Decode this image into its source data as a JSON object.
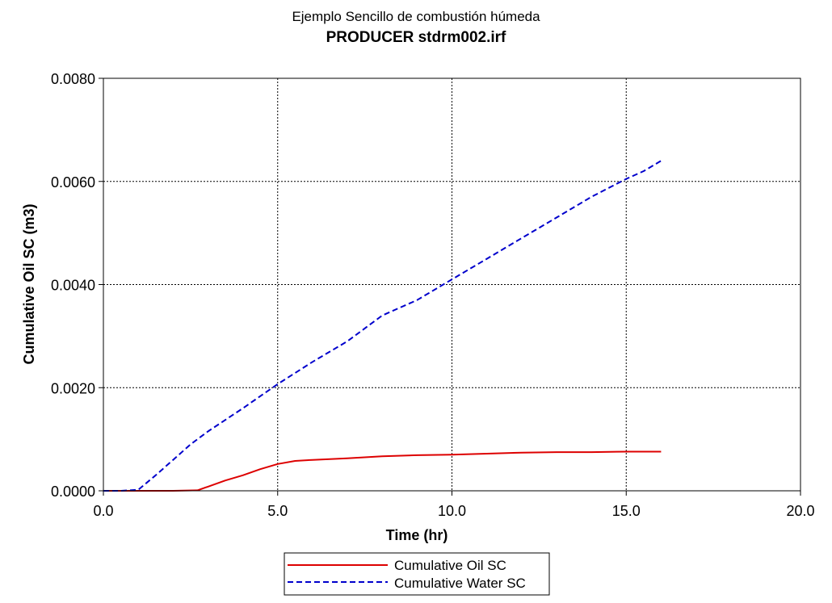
{
  "chart_data": {
    "type": "line",
    "title": "Ejemplo Sencillo de combustión húmeda",
    "subtitle": "PRODUCER stdrm002.irf",
    "xlabel": "Time (hr)",
    "ylabel": "Cumulative Oil SC (m3)",
    "xlim": [
      0,
      20
    ],
    "ylim": [
      0,
      0.008
    ],
    "x_ticks": [
      "0.0",
      "5.0",
      "10.0",
      "15.0",
      "20.0"
    ],
    "y_ticks": [
      "0.0000",
      "0.0020",
      "0.0040",
      "0.0060",
      "0.0080"
    ],
    "grid": true,
    "legend_position": "bottom",
    "series": [
      {
        "name": "Cumulative Oil SC",
        "color": "#dd0000",
        "style": "solid",
        "x": [
          0,
          1,
          2,
          2.7,
          3,
          3.5,
          4,
          4.5,
          5,
          5.5,
          6,
          7,
          8,
          9,
          10,
          11,
          12,
          13,
          14,
          15,
          16
        ],
        "y": [
          0,
          0,
          0,
          1e-05,
          8e-05,
          0.0002,
          0.0003,
          0.00042,
          0.00052,
          0.00058,
          0.0006,
          0.00063,
          0.00067,
          0.00069,
          0.0007,
          0.00072,
          0.00074,
          0.00075,
          0.00075,
          0.00076,
          0.00076
        ]
      },
      {
        "name": "Cumulative Water SC",
        "color": "#0000cc",
        "style": "dashed",
        "x": [
          0,
          0.5,
          1,
          1.5,
          2,
          2.5,
          3,
          4,
          5,
          6,
          7,
          8,
          9,
          10,
          11,
          12,
          13,
          14,
          15,
          15.5,
          16
        ],
        "y": [
          0,
          0,
          2e-05,
          0.0003,
          0.0006,
          0.0009,
          0.00115,
          0.0016,
          0.00207,
          0.0025,
          0.0029,
          0.0034,
          0.0037,
          0.0041,
          0.0045,
          0.0049,
          0.0053,
          0.0057,
          0.00605,
          0.0062,
          0.0064
        ]
      }
    ]
  }
}
